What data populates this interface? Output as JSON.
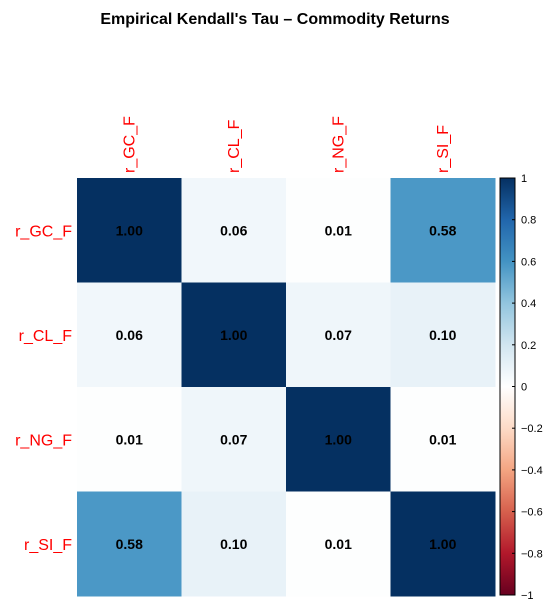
{
  "chart_data": {
    "type": "heatmap",
    "title": "Empirical Kendall's Tau – Commodity Returns",
    "rows": [
      "r_GC_F",
      "r_CL_F",
      "r_NG_F",
      "r_SI_F"
    ],
    "columns": [
      "r_GC_F",
      "r_CL_F",
      "r_NG_F",
      "r_SI_F"
    ],
    "values": [
      [
        1.0,
        0.06,
        0.01,
        0.58
      ],
      [
        0.06,
        1.0,
        0.07,
        0.1
      ],
      [
        0.01,
        0.07,
        1.0,
        0.01
      ],
      [
        0.58,
        0.1,
        0.01,
        1.0
      ]
    ],
    "value_labels": [
      [
        "1.00",
        "0.06",
        "0.01",
        "0.58"
      ],
      [
        "0.06",
        "1.00",
        "0.07",
        "0.10"
      ],
      [
        "0.01",
        "0.07",
        "1.00",
        "0.01"
      ],
      [
        "0.58",
        "0.10",
        "0.01",
        "1.00"
      ]
    ],
    "colorbar": {
      "range": [
        -1,
        1
      ],
      "ticks": [
        "1",
        "0.8",
        "0.6",
        "0.4",
        "0.2",
        "0",
        "−0.2",
        "−0.4",
        "−0.6",
        "−0.8",
        "−1"
      ],
      "colors": {
        "negative": "#67001f",
        "neutral": "#ffffff",
        "positive": "#053061"
      }
    },
    "label_color": "#ff0000",
    "legend": "right"
  }
}
